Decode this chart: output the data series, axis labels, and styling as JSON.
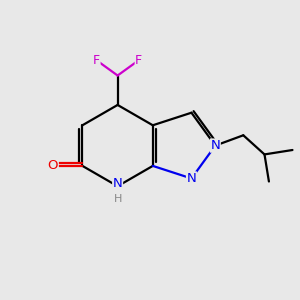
{
  "background_color": "#e8e8e8",
  "bond_color": "#000000",
  "N_color": "#0000ee",
  "O_color": "#ee0000",
  "F_color": "#cc00cc",
  "H_color": "#888888",
  "bond_width": 1.6,
  "figsize": [
    3.0,
    3.0
  ],
  "dpi": 100,
  "xlim": [
    0,
    10
  ],
  "ylim": [
    0,
    10
  ]
}
